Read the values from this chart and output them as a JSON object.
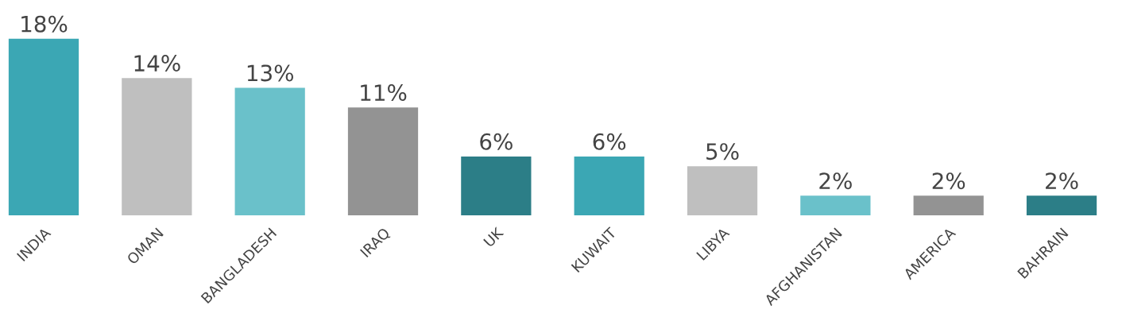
{
  "chart_data": {
    "type": "bar",
    "categories": [
      "INDIA",
      "OMAN",
      "BANGLADESH",
      "IRAQ",
      "UK",
      "KUWAIT",
      "LIBYA",
      "AFGHANISTAN",
      "AMERICA",
      "BAHRAIN"
    ],
    "values": [
      18,
      14,
      13,
      11,
      6,
      6,
      5,
      2,
      2,
      2
    ],
    "value_labels": [
      "18%",
      "14%",
      "13%",
      "11%",
      "6%",
      "6%",
      "5%",
      "2%",
      "2%",
      "2%"
    ],
    "colors": [
      "#3ba7b4",
      "#bfbfbf",
      "#6ac1ca",
      "#939393",
      "#2c7e87",
      "#3ba7b4",
      "#bfbfbf",
      "#6ac1ca",
      "#939393",
      "#2c7e87"
    ],
    "grid": false,
    "legend": false
  }
}
